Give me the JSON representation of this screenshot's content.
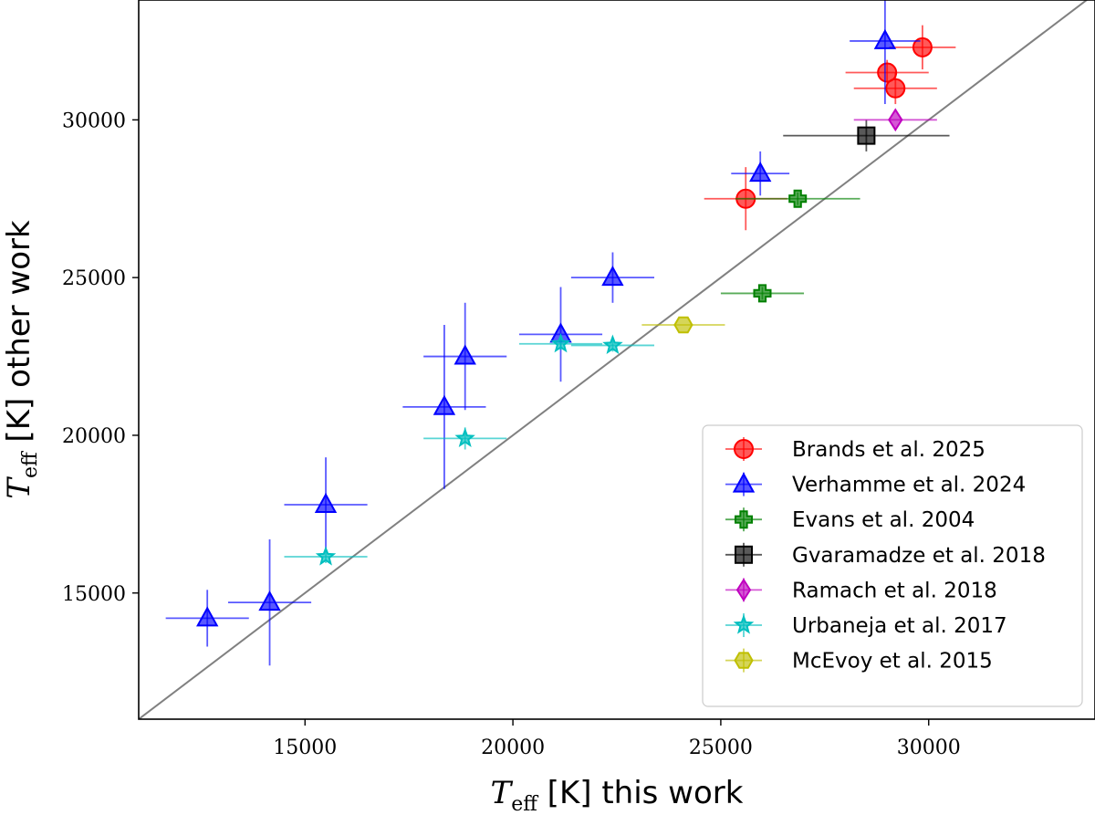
{
  "chart_data": {
    "type": "scatter",
    "xlabel_symbol": "T",
    "xlabel_sub": "eff",
    "xlabel_rest": " [K] this work",
    "ylabel_symbol": "T",
    "ylabel_sub": "eff",
    "ylabel_rest": " [K] other work",
    "xlim": [
      11000,
      34000
    ],
    "ylim": [
      11000,
      33800
    ],
    "xticks": [
      15000,
      20000,
      25000,
      30000
    ],
    "yticks": [
      15000,
      20000,
      25000,
      30000
    ],
    "xtick_labels": [
      "15000",
      "20000",
      "25000",
      "30000"
    ],
    "ytick_labels": [
      "15000",
      "20000",
      "25000",
      "30000"
    ],
    "identity_line": true,
    "legend_position": "lower-right",
    "series": [
      {
        "name": "Brands et al. 2025",
        "marker": "circle",
        "color": "#ff0000",
        "points": [
          {
            "x": 29850,
            "y": 32300,
            "xerr": 800,
            "yerr": 700
          },
          {
            "x": 29000,
            "y": 31500,
            "xerr": 1000,
            "yerr": 400
          },
          {
            "x": 29200,
            "y": 31000,
            "xerr": 1000,
            "yerr": 500
          },
          {
            "x": 25600,
            "y": 27500,
            "xerr": 1000,
            "yerr": 1000
          }
        ]
      },
      {
        "name": "Verhamme et al. 2024",
        "marker": "triangle",
        "color": "#0000ff",
        "points": [
          {
            "x": 28950,
            "y": 32500,
            "xerr": 850,
            "yerr": 2000
          },
          {
            "x": 25950,
            "y": 28300,
            "xerr": 700,
            "yerr": 700
          },
          {
            "x": 22400,
            "y": 25000,
            "xerr": 1000,
            "yerr": 800
          },
          {
            "x": 21150,
            "y": 23200,
            "xerr": 1000,
            "yerr": 1500
          },
          {
            "x": 18850,
            "y": 22500,
            "xerr": 1000,
            "yerr": 1700
          },
          {
            "x": 18350,
            "y": 20900,
            "xerr": 1000,
            "yerr": 2600
          },
          {
            "x": 15500,
            "y": 17800,
            "xerr": 1000,
            "yerr": 1500
          },
          {
            "x": 14150,
            "y": 14700,
            "xerr": 1000,
            "yerr": 2000
          },
          {
            "x": 12650,
            "y": 14200,
            "xerr": 1000,
            "yerr": 900
          }
        ]
      },
      {
        "name": "Evans et al. 2004",
        "marker": "plus",
        "color": "#008000",
        "points": [
          {
            "x": 26850,
            "y": 27500,
            "xerr": 1500,
            "yerr": 200
          },
          {
            "x": 26000,
            "y": 24500,
            "xerr": 1000,
            "yerr": 200
          }
        ]
      },
      {
        "name": "Gvaramadze et al. 2018",
        "marker": "square",
        "color": "#000000",
        "points": [
          {
            "x": 28500,
            "y": 29500,
            "xerr": 2000,
            "yerr": 500
          }
        ]
      },
      {
        "name": "Ramach et al. 2018",
        "marker": "diamond",
        "color": "#bf00bf",
        "points": [
          {
            "x": 29200,
            "y": 30000,
            "xerr": 1000,
            "yerr": 0
          }
        ]
      },
      {
        "name": "Urbaneja et al. 2017",
        "marker": "star",
        "color": "#00bfbf",
        "points": [
          {
            "x": 22400,
            "y": 22850,
            "xerr": 1000,
            "yerr": 200
          },
          {
            "x": 21150,
            "y": 22900,
            "xerr": 1000,
            "yerr": 200
          },
          {
            "x": 18850,
            "y": 19900,
            "xerr": 1000,
            "yerr": 350
          },
          {
            "x": 15500,
            "y": 16150,
            "xerr": 1000,
            "yerr": 200
          }
        ]
      },
      {
        "name": "McEvoy et al. 2015",
        "marker": "hexagon",
        "color": "#bfbf00",
        "points": [
          {
            "x": 24100,
            "y": 23500,
            "xerr": 1000,
            "yerr": 0
          }
        ]
      }
    ]
  }
}
